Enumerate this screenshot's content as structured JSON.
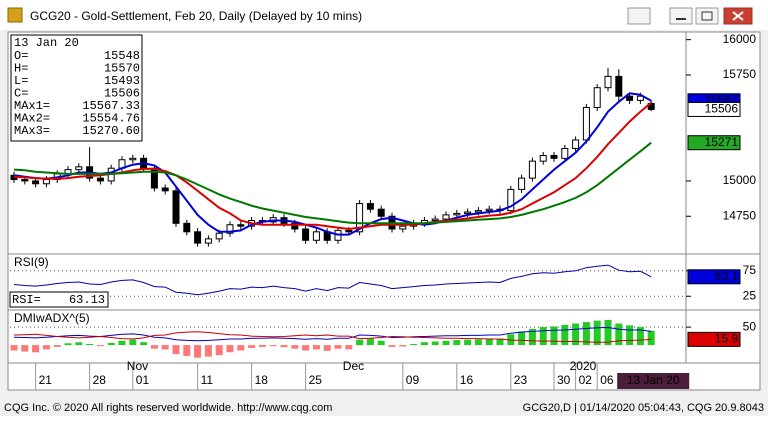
{
  "window": {
    "title": "GCG20 - Gold-Settlement, Feb 20, Daily (Delayed by 10 mins)",
    "status_left": "CQG Inc. © 2020 All rights reserved worldwide. http://www.cqg.com",
    "status_right": "GCG20,D | 01/14/2020 05:04:43, CQG 20.9.8043"
  },
  "chart_data": [
    {
      "type": "candlestick",
      "categories": [
        null,
        null,
        "21",
        null,
        null,
        null,
        null,
        "28",
        null,
        null,
        null,
        "01",
        null,
        null,
        null,
        null,
        null,
        "11",
        null,
        null,
        null,
        null,
        "18",
        null,
        null,
        null,
        null,
        "25",
        null,
        null,
        null,
        null,
        null,
        null,
        null,
        null,
        "09",
        null,
        null,
        null,
        null,
        "16",
        null,
        null,
        null,
        null,
        "23",
        null,
        null,
        null,
        "30",
        null,
        "02",
        null,
        "06",
        null,
        null,
        null,
        null,
        null
      ],
      "month_labels": [
        {
          "index": 11,
          "label": "Nov"
        },
        {
          "index": 31,
          "label": "Dec"
        },
        {
          "index": 52,
          "label": "2020"
        }
      ],
      "cursor_label": "13 Jan 20",
      "open": [
        15040,
        15010,
        15000,
        14980,
        15010,
        15050,
        15080,
        15100,
        15020,
        15000,
        15090,
        15150,
        15160,
        15090,
        14950,
        14930,
        14700,
        14640,
        14560,
        14590,
        14630,
        14690,
        14680,
        14720,
        14710,
        14740,
        14700,
        14660,
        14580,
        14640,
        14580,
        14650,
        14640,
        14840,
        14800,
        14750,
        14660,
        14680,
        14700,
        14720,
        14730,
        14760,
        14770,
        14780,
        14790,
        14800,
        14790,
        14940,
        15020,
        15140,
        15180,
        15160,
        15230,
        15290,
        15520,
        15660,
        15740,
        15600,
        15570,
        15548
      ],
      "high": [
        15065,
        15035,
        15025,
        15035,
        15075,
        15105,
        15125,
        15240,
        15045,
        15115,
        15175,
        15185,
        15185,
        15115,
        14975,
        14955,
        14725,
        14665,
        14615,
        14655,
        14715,
        14715,
        14745,
        14745,
        14765,
        14765,
        14725,
        14685,
        14665,
        14665,
        14675,
        14675,
        14865,
        14865,
        14825,
        14775,
        14705,
        14725,
        14745,
        14755,
        14785,
        14795,
        14805,
        14815,
        14825,
        14825,
        14965,
        15045,
        15165,
        15205,
        15205,
        15255,
        15315,
        15545,
        15685,
        15800,
        15790,
        15625,
        15625,
        15570
      ],
      "low": [
        14985,
        14975,
        14955,
        14955,
        14985,
        15025,
        15055,
        14995,
        14975,
        14975,
        15065,
        15125,
        15065,
        14925,
        14905,
        14675,
        14615,
        14535,
        14535,
        14565,
        14605,
        14655,
        14655,
        14685,
        14685,
        14675,
        14635,
        14555,
        14555,
        14555,
        14555,
        14615,
        14615,
        14775,
        14725,
        14635,
        14635,
        14655,
        14675,
        14695,
        14705,
        14735,
        14745,
        14755,
        14765,
        14765,
        14765,
        14915,
        14995,
        15115,
        15135,
        15135,
        15205,
        15265,
        15495,
        15635,
        15550,
        15545,
        15545,
        15493
      ],
      "close": [
        15010,
        15000,
        14980,
        15010,
        15050,
        15080,
        15100,
        15020,
        15000,
        15090,
        15150,
        15160,
        15090,
        14950,
        14930,
        14700,
        14640,
        14560,
        14590,
        14630,
        14690,
        14680,
        14720,
        14710,
        14740,
        14700,
        14660,
        14580,
        14640,
        14580,
        14650,
        14640,
        14840,
        14800,
        14750,
        14660,
        14680,
        14700,
        14720,
        14730,
        14760,
        14770,
        14780,
        14790,
        14800,
        14790,
        14940,
        15020,
        15140,
        15180,
        15160,
        15230,
        15290,
        15520,
        15660,
        15740,
        15600,
        15570,
        15600,
        15506
      ],
      "up_color": "#ffffff",
      "down_color": "#000000",
      "series": [
        {
          "color": "#0000dd",
          "values": [
            15040,
            15030,
            15020,
            15015,
            15025,
            15040,
            15060,
            15060,
            15050,
            15060,
            15090,
            15115,
            15125,
            15110,
            15060,
            14960,
            14860,
            14760,
            14690,
            14640,
            14640,
            14650,
            14690,
            14710,
            14720,
            14720,
            14710,
            14690,
            14670,
            14640,
            14620,
            14620,
            14660,
            14700,
            14730,
            14740,
            14720,
            14700,
            14690,
            14700,
            14720,
            14740,
            14760,
            14770,
            14780,
            14790,
            14820,
            14870,
            14940,
            15010,
            15080,
            15140,
            15200,
            15280,
            15380,
            15490,
            15560,
            15620,
            15610,
            15567.33
          ]
        },
        {
          "color": "#dd0000",
          "values": [
            15030,
            15025,
            15020,
            15015,
            15015,
            15020,
            15030,
            15035,
            15040,
            15050,
            15060,
            15075,
            15085,
            15085,
            15070,
            15040,
            14990,
            14930,
            14870,
            14810,
            14770,
            14720,
            14700,
            14690,
            14690,
            14690,
            14690,
            14690,
            14690,
            14680,
            14670,
            14660,
            14670,
            14680,
            14690,
            14690,
            14690,
            14690,
            14700,
            14710,
            14720,
            14725,
            14735,
            14745,
            14755,
            14760,
            14775,
            14800,
            14840,
            14880,
            14920,
            14970,
            15020,
            15090,
            15170,
            15260,
            15340,
            15420,
            15490,
            15554.76
          ]
        },
        {
          "color": "#007700",
          "values": [
            15080,
            15075,
            15065,
            15060,
            15055,
            15050,
            15050,
            15050,
            15050,
            15050,
            15055,
            15060,
            15065,
            15065,
            15060,
            15040,
            15010,
            14975,
            14940,
            14905,
            14875,
            14850,
            14825,
            14805,
            14790,
            14775,
            14760,
            14745,
            14735,
            14725,
            14715,
            14705,
            14700,
            14700,
            14700,
            14700,
            14700,
            14700,
            14700,
            14705,
            14710,
            14715,
            14720,
            14725,
            14730,
            14735,
            14745,
            14760,
            14780,
            14800,
            14825,
            14850,
            14880,
            14920,
            14970,
            15030,
            15090,
            15150,
            15210,
            15270.6
          ]
        }
      ],
      "ylim": [
        14490,
        16040
      ],
      "yticks": [
        14750,
        15000,
        15750,
        16000
      ],
      "readout": {
        "date": "13 Jan 20",
        "items": [
          {
            "label": "O=",
            "value": 15548
          },
          {
            "label": "H=",
            "value": 15570
          },
          {
            "label": "L=",
            "value": 15493
          },
          {
            "label": "C=",
            "value": 15506
          },
          {
            "label": "MAx1=",
            "value": 15567.33
          },
          {
            "label": "MAx2=",
            "value": 15554.76
          },
          {
            "label": "MAx3=",
            "value": 15270.6,
            "text": "15270.60"
          }
        ]
      },
      "price_tags": [
        {
          "value": 15567.33,
          "label": "15567",
          "color": "#0000dd",
          "text_color": "#ffffff"
        },
        {
          "value": 15506,
          "color": "#ffffff",
          "text_color": "#000000"
        },
        {
          "value": 15270.6,
          "label": "15271",
          "color": "#22aa22",
          "text_color": "#ffffff"
        }
      ]
    },
    {
      "type": "line",
      "title": "RSI(9)",
      "readout_label": "RSI=",
      "series": [
        {
          "color": "#0000aa",
          "values": [
            48,
            46,
            45,
            47,
            50,
            52,
            53,
            49,
            48,
            53,
            56,
            57,
            52,
            44,
            43,
            33,
            31,
            28,
            31,
            35,
            40,
            39,
            43,
            42,
            45,
            42,
            40,
            35,
            40,
            36,
            42,
            41,
            52,
            49,
            46,
            40,
            42,
            44,
            46,
            47,
            49,
            50,
            51,
            52,
            53,
            52,
            60,
            64,
            69,
            71,
            70,
            73,
            75,
            81,
            84,
            86,
            76,
            73,
            74,
            63.13
          ]
        }
      ],
      "ylim": [
        0,
        100
      ],
      "yticks": [
        25,
        75
      ],
      "tag": {
        "value": 63.13,
        "label": "63.1",
        "color": "#0000dd",
        "text_color": "#ffffff"
      }
    },
    {
      "type": "dmi",
      "title": "DMIwADX^(5)",
      "histogram": {
        "up_color": "#22cc22",
        "down_color": "#ff7777",
        "values": [
          -15,
          -18,
          -20,
          -12,
          -5,
          5,
          8,
          3,
          -3,
          6,
          12,
          15,
          8,
          -10,
          -12,
          -25,
          -30,
          -35,
          -32,
          -28,
          -20,
          -15,
          -8,
          -5,
          -3,
          -6,
          -10,
          -15,
          -12,
          -16,
          -10,
          -12,
          15,
          18,
          12,
          -5,
          -4,
          3,
          8,
          10,
          12,
          14,
          15,
          16,
          18,
          18,
          30,
          38,
          45,
          50,
          52,
          56,
          60,
          64,
          68,
          70,
          60,
          55,
          50,
          40
        ]
      },
      "series": [
        {
          "color": "#0000cc",
          "values": [
            22,
            21,
            20,
            22,
            24,
            26,
            27,
            25,
            24,
            27,
            30,
            31,
            28,
            22,
            20,
            15,
            13,
            12,
            13,
            15,
            17,
            17,
            19,
            19,
            20,
            19,
            18,
            16,
            18,
            16,
            19,
            19,
            28,
            27,
            25,
            21,
            22,
            23,
            24,
            25,
            26,
            26,
            27,
            27,
            28,
            28,
            33,
            36,
            38,
            40,
            41,
            42,
            44,
            46,
            48,
            49,
            44,
            42,
            42,
            38
          ]
        },
        {
          "color": "#cc0000",
          "values": [
            28,
            29,
            30,
            27,
            24,
            22,
            20,
            22,
            24,
            21,
            18,
            17,
            20,
            27,
            28,
            34,
            36,
            37,
            35,
            32,
            29,
            28,
            25,
            24,
            23,
            24,
            26,
            28,
            26,
            28,
            25,
            25,
            18,
            19,
            21,
            24,
            23,
            22,
            21,
            20,
            19,
            19,
            18,
            18,
            17,
            17,
            14,
            13,
            12,
            11,
            11,
            10,
            10,
            9,
            8,
            8,
            12,
            13,
            14,
            15.9
          ]
        }
      ],
      "ylim": [
        -47,
        92
      ],
      "yticks": [
        50
      ],
      "tag": {
        "value": 15.9,
        "color": "#dd0000",
        "text_color": "#ffffff"
      }
    }
  ]
}
